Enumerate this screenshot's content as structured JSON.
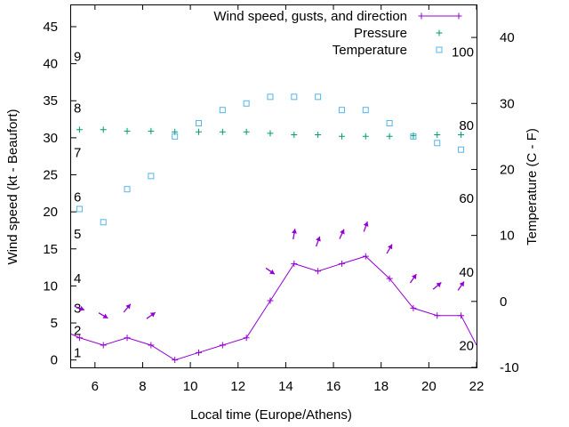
{
  "chart_data": {
    "type": "line",
    "xlabel": "Local time (Europe/Athens)",
    "ylabel_left": "Wind speed (kt - Beaufort)",
    "ylabel_right": "Temperature (C - F)",
    "x_range": [
      5,
      22
    ],
    "x_ticks": [
      6,
      8,
      10,
      12,
      14,
      16,
      18,
      20,
      22
    ],
    "y_left_range": [
      -1,
      48
    ],
    "y_left_ticks": [
      0,
      5,
      10,
      15,
      20,
      25,
      30,
      35,
      40,
      45
    ],
    "y_right_range": [
      -10,
      45
    ],
    "y_right_ticks": [
      -10,
      0,
      10,
      20,
      30,
      40
    ],
    "beaufort_scale": [
      {
        "label": "1",
        "kt": 1
      },
      {
        "label": "2",
        "kt": 4
      },
      {
        "label": "3",
        "kt": 7
      },
      {
        "label": "4",
        "kt": 11
      },
      {
        "label": "5",
        "kt": 17
      },
      {
        "label": "6",
        "kt": 22
      },
      {
        "label": "7",
        "kt": 28
      },
      {
        "label": "8",
        "kt": 34
      },
      {
        "label": "9",
        "kt": 41
      }
    ],
    "fahrenheit_scale": [
      {
        "label": "20",
        "celsius": -6.7
      },
      {
        "label": "40",
        "celsius": 4.4
      },
      {
        "label": "60",
        "celsius": 15.6
      },
      {
        "label": "80",
        "celsius": 26.7
      },
      {
        "label": "100",
        "celsius": 37.8
      }
    ],
    "legend": [
      {
        "label": "Wind speed, gusts, and direction",
        "marker": "line-plus",
        "color": "#9400d3"
      },
      {
        "label": "Pressure",
        "marker": "plus",
        "color": "#009e73"
      },
      {
        "label": "Temperature",
        "marker": "square",
        "color": "#56b4e9"
      }
    ],
    "series": [
      {
        "name": "Wind speed, gusts, and direction",
        "axis": "left",
        "color": "#9400d3",
        "x": [
          5.0,
          5.35,
          6.35,
          7.35,
          8.35,
          9.35,
          10.35,
          11.35,
          12.35,
          13.35,
          14.35,
          15.35,
          16.35,
          17.35,
          18.35,
          19.35,
          20.35,
          21.35,
          22.0
        ],
        "y": [
          3.5,
          3,
          2,
          3,
          2,
          0,
          1,
          2,
          3,
          8,
          13,
          12,
          13,
          14,
          11,
          7,
          6,
          6,
          2
        ]
      },
      {
        "name": "Wind direction arrows",
        "axis": "left",
        "color": "#9400d3",
        "x": [
          5.35,
          6.35,
          7.35,
          8.35,
          13.35,
          14.35,
          15.35,
          16.35,
          17.35,
          18.35,
          19.35,
          20.35,
          21.35
        ],
        "y": [
          7,
          6,
          7,
          6,
          12,
          17,
          16,
          17,
          18,
          15,
          11,
          10,
          10
        ],
        "direction_deg": [
          290,
          300,
          220,
          235,
          305,
          190,
          200,
          205,
          200,
          210,
          215,
          230,
          215
        ]
      },
      {
        "name": "Pressure",
        "axis": "left",
        "color": "#009e73",
        "x": [
          5.35,
          6.35,
          7.35,
          8.35,
          9.35,
          10.35,
          11.35,
          12.35,
          13.35,
          14.35,
          15.35,
          16.35,
          17.35,
          18.35,
          19.35,
          20.35,
          21.35
        ],
        "y": [
          31.1,
          31.1,
          30.9,
          30.9,
          30.8,
          30.8,
          30.8,
          30.8,
          30.6,
          30.4,
          30.4,
          30.2,
          30.2,
          30.2,
          30.3,
          30.4,
          30.4
        ]
      },
      {
        "name": "Temperature",
        "axis": "right",
        "color": "#56b4e9",
        "x": [
          5.35,
          6.35,
          7.35,
          8.35,
          9.35,
          10.35,
          11.35,
          12.35,
          13.35,
          14.35,
          15.35,
          16.35,
          17.35,
          18.35,
          19.35,
          20.35,
          21.35
        ],
        "y": [
          14,
          12,
          17,
          19,
          25,
          27,
          29,
          30,
          31,
          31,
          31,
          29,
          29,
          27,
          25,
          24,
          23
        ]
      }
    ]
  }
}
